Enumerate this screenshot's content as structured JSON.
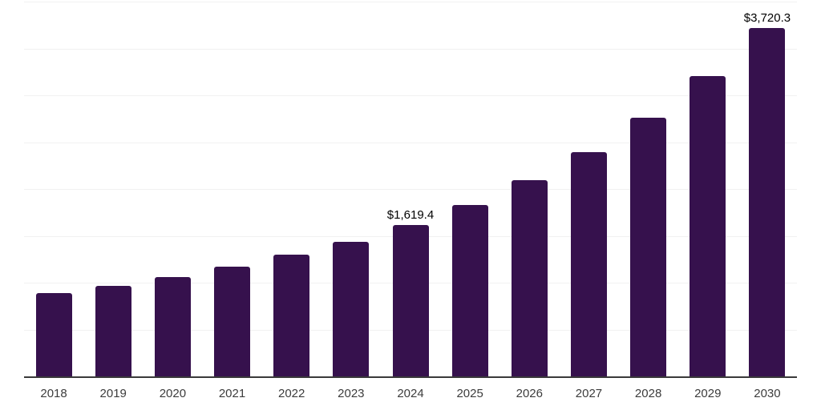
{
  "chart_data": {
    "type": "bar",
    "title": "",
    "xlabel": "",
    "ylabel": "",
    "categories": [
      "2018",
      "2019",
      "2020",
      "2021",
      "2022",
      "2023",
      "2024",
      "2025",
      "2026",
      "2027",
      "2028",
      "2029",
      "2030"
    ],
    "values": [
      890,
      963,
      1060,
      1175,
      1300,
      1440,
      1619.4,
      1830,
      2090,
      2395,
      2760,
      3205,
      3720.3
    ],
    "data_labels": {
      "2024": "$1,619.4",
      "2030": "$3,720.3"
    },
    "ylim": [
      0,
      4000
    ],
    "gridline_step": 500,
    "grid": true,
    "legend": false,
    "y_tick_labels_visible": false,
    "bar_color": "#36114d",
    "axis_line_color": "#3a3a3a",
    "gridline_color": "#f1f1f1",
    "tick_label_color": "#3c3c3c",
    "data_label_color": "#000000"
  }
}
